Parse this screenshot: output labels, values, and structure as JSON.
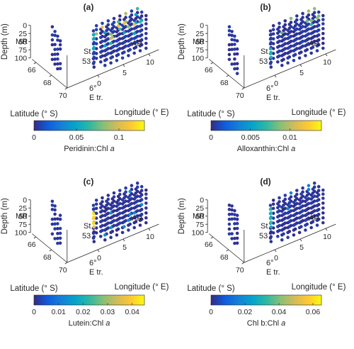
{
  "colormap": [
    "#352a87",
    "#0f5cdd",
    "#1481d6",
    "#06a4ca",
    "#2eb7a4",
    "#87bf77",
    "#d1bb59",
    "#fec832",
    "#f9fb0e"
  ],
  "panels": [
    {
      "panel_label": "(a)",
      "colorbar_label": "Peridinin:Chl",
      "colorbar_label_italic": "a",
      "colorbar_ticks": [
        "0",
        "0.05",
        "0.1"
      ],
      "colorbar_tick_values": [
        0,
        0.05,
        0.1
      ]
    },
    {
      "panel_label": "(b)",
      "colorbar_label": "Alloxanthin:Chl",
      "colorbar_label_italic": "a",
      "colorbar_ticks": [
        "0",
        "0.005",
        "0.01"
      ],
      "colorbar_tick_values": [
        0,
        0.005,
        0.01
      ]
    },
    {
      "panel_label": "(c)",
      "colorbar_label": "Lutein:Chl",
      "colorbar_label_italic": "a",
      "colorbar_ticks": [
        "0",
        "0.01",
        "0.02",
        "0.03",
        "0.04"
      ],
      "colorbar_tick_values": [
        0,
        0.01,
        0.02,
        0.03,
        0.04
      ]
    },
    {
      "panel_label": "(d)",
      "colorbar_label": "Chl b:Chl",
      "colorbar_label_italic": "a",
      "colorbar_ticks": [
        "0",
        "0.02",
        "0.04",
        "0.06"
      ],
      "colorbar_tick_values": [
        0,
        0.02,
        0.04,
        0.06
      ]
    }
  ],
  "axes": {
    "depth_label": "Depth (m)",
    "depth_ticks": [
      "0",
      "25",
      "50",
      "75",
      "100"
    ],
    "latitude_label": "Latitude (° S)",
    "latitude_ticks": [
      "66",
      "68",
      "70"
    ],
    "longitude_label": "Longitude (° E)",
    "longitude_ticks": [
      "0",
      "5",
      "10"
    ]
  },
  "annotations": {
    "mr": "MR",
    "ar": "AR",
    "st": "St",
    "st_num": "53",
    "e_tr": "E tr.",
    "six_deg": "6°",
    "star": "*"
  },
  "chart_data": [
    {
      "type": "scatter",
      "title": "(a)",
      "dimensions": 3,
      "x_label": "Longitude (° E)",
      "y_label": "Latitude (° S)",
      "z_label": "Depth (m)",
      "z_reversed": true,
      "color_label": "Peridinin:Chl a",
      "color_range": [
        0,
        0.13
      ],
      "regions": [
        "MR",
        "AR",
        "St 53",
        "E tr.",
        "6°"
      ],
      "points_shown": "Sampling stations along MR, AR, St 53 and E tr. at depths 0–100 m; mostly low values (~0), a few stations near AR and St 53 reach ~0.05–0.1"
    },
    {
      "type": "scatter",
      "title": "(b)",
      "dimensions": 3,
      "x_label": "Longitude (° E)",
      "y_label": "Latitude (° S)",
      "z_label": "Depth (m)",
      "z_reversed": true,
      "color_label": "Alloxanthin:Chl a",
      "color_range": [
        0,
        0.014
      ],
      "regions": [
        "MR",
        "AR",
        "St 53",
        "E tr.",
        "6°"
      ],
      "points_shown": "Mostly ~0; a few near-surface stations near AR ~0.007–0.01"
    },
    {
      "type": "scatter",
      "title": "(c)",
      "dimensions": 3,
      "x_label": "Longitude (° E)",
      "y_label": "Latitude (° S)",
      "z_label": "Depth (m)",
      "z_reversed": true,
      "color_label": "Lutein:Chl a",
      "color_range": [
        0,
        0.045
      ],
      "regions": [
        "MR",
        "AR",
        "St 53",
        "E tr.",
        "6°"
      ],
      "points_shown": "Mostly ~0; elevated values ~0.03–0.04 at St 53 around 25–50 m"
    },
    {
      "type": "scatter",
      "title": "(d)",
      "dimensions": 3,
      "x_label": "Longitude (° E)",
      "y_label": "Latitude (° S)",
      "z_label": "Depth (m)",
      "z_reversed": true,
      "color_label": "Chl b:Chl a",
      "color_range": [
        0,
        0.065
      ],
      "regions": [
        "MR",
        "AR",
        "St 53",
        "E tr.",
        "6°"
      ],
      "points_shown": "Mostly ~0; a few stations near St 53 at 25–50 m ~0.02–0.03"
    }
  ]
}
